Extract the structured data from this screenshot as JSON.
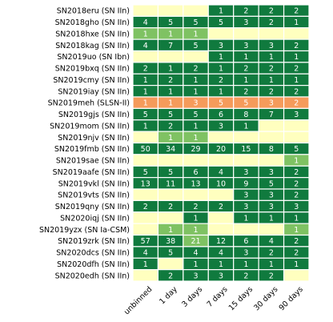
{
  "chart_data": {
    "type": "heatmap",
    "columns": [
      "unbinned",
      "1 day",
      "3 days",
      "7 days",
      "15 days",
      "30 days",
      "90 days"
    ],
    "rows": [
      {
        "label": "SN2018eru (SN IIn)",
        "values": [
          null,
          null,
          null,
          1,
          2,
          2,
          2
        ],
        "categories": [
          "none",
          "none",
          "none",
          "dark",
          "dark",
          "dark",
          "dark"
        ]
      },
      {
        "label": "SN2018gho (SN IIn)",
        "values": [
          4,
          5,
          5,
          5,
          3,
          2,
          1
        ],
        "categories": [
          "dark",
          "dark",
          "dark",
          "dark",
          "dark",
          "dark",
          "dark"
        ]
      },
      {
        "label": "SN2018hxe (SN IIn)",
        "values": [
          1,
          1,
          1,
          null,
          null,
          null,
          null
        ],
        "categories": [
          "light",
          "light",
          "light",
          "none",
          "none",
          "none",
          "none"
        ]
      },
      {
        "label": "SN2018kag (SN IIn)",
        "values": [
          4,
          7,
          5,
          3,
          3,
          3,
          2
        ],
        "categories": [
          "dark",
          "dark",
          "dark",
          "dark",
          "dark",
          "dark",
          "dark"
        ]
      },
      {
        "label": "SN2019uo (SN Ibn)",
        "values": [
          null,
          null,
          null,
          1,
          1,
          1,
          1
        ],
        "categories": [
          "none",
          "none",
          "none",
          "dark",
          "dark",
          "dark",
          "dark"
        ]
      },
      {
        "label": "SN2019bxq (SN IIn)",
        "values": [
          2,
          1,
          2,
          1,
          2,
          2,
          2
        ],
        "categories": [
          "dark",
          "dark",
          "dark",
          "dark",
          "dark",
          "dark",
          "dark"
        ]
      },
      {
        "label": "SN2019cmy (SN IIn)",
        "values": [
          1,
          2,
          1,
          2,
          1,
          1,
          1
        ],
        "categories": [
          "dark",
          "dark",
          "dark",
          "dark",
          "dark",
          "dark",
          "dark"
        ]
      },
      {
        "label": "SN2019iay (SN IIn)",
        "values": [
          1,
          1,
          1,
          1,
          2,
          2,
          2
        ],
        "categories": [
          "dark",
          "dark",
          "dark",
          "dark",
          "dark",
          "dark",
          "dark"
        ]
      },
      {
        "label": "SN2019meh (SLSN-II)",
        "values": [
          1,
          1,
          3,
          5,
          5,
          3,
          2
        ],
        "categories": [
          "orange",
          "orange",
          "orange",
          "orange",
          "orange",
          "orange",
          "orange"
        ]
      },
      {
        "label": "SN2019gjs (SN IIn)",
        "values": [
          5,
          5,
          5,
          6,
          8,
          7,
          3
        ],
        "categories": [
          "dark",
          "dark",
          "dark",
          "dark",
          "dark",
          "dark",
          "dark"
        ]
      },
      {
        "label": "SN2019mom (SN IIn)",
        "values": [
          1,
          2,
          1,
          3,
          1,
          null,
          null
        ],
        "categories": [
          "dark",
          "dark",
          "dark",
          "dark",
          "dark",
          "none",
          "none"
        ]
      },
      {
        "label": "SN2019njv (SN IIn)",
        "values": [
          null,
          1,
          1,
          null,
          null,
          null,
          null
        ],
        "categories": [
          "none",
          "light",
          "light",
          "none",
          "none",
          "none",
          "none"
        ]
      },
      {
        "label": "SN2019fmb (SN IIn)",
        "values": [
          50,
          34,
          29,
          20,
          15,
          8,
          5
        ],
        "categories": [
          "dark",
          "dark",
          "dark",
          "dark",
          "dark",
          "dark",
          "dark"
        ]
      },
      {
        "label": "SN2019sae (SN IIn)",
        "values": [
          null,
          null,
          null,
          null,
          null,
          null,
          1
        ],
        "categories": [
          "none",
          "none",
          "none",
          "none",
          "none",
          "none",
          "light"
        ]
      },
      {
        "label": "SN2019aafe (SN IIn)",
        "values": [
          5,
          5,
          6,
          4,
          3,
          3,
          2
        ],
        "categories": [
          "dark",
          "dark",
          "dark",
          "dark",
          "dark",
          "dark",
          "dark"
        ]
      },
      {
        "label": "SN2019vkl (SN IIn)",
        "values": [
          13,
          11,
          13,
          10,
          9,
          5,
          2
        ],
        "categories": [
          "dark",
          "dark",
          "dark",
          "dark",
          "dark",
          "dark",
          "dark"
        ]
      },
      {
        "label": "SN2019vts (SN IIn)",
        "values": [
          null,
          null,
          null,
          null,
          3,
          3,
          2
        ],
        "categories": [
          "none",
          "none",
          "none",
          "none",
          "dark",
          "dark",
          "dark"
        ]
      },
      {
        "label": "SN2019qny (SN IIn)",
        "values": [
          2,
          2,
          2,
          2,
          3,
          3,
          3
        ],
        "categories": [
          "dark",
          "dark",
          "dark",
          "dark",
          "dark",
          "dark",
          "dark"
        ]
      },
      {
        "label": "SN2020iqj (SN IIn)",
        "values": [
          null,
          null,
          1,
          null,
          1,
          1,
          1
        ],
        "categories": [
          "none",
          "none",
          "dark",
          "none",
          "dark",
          "dark",
          "dark"
        ]
      },
      {
        "label": "SN2019yzx (SN Ia-CSM)",
        "values": [
          null,
          1,
          1,
          null,
          null,
          null,
          1
        ],
        "categories": [
          "none",
          "light",
          "light",
          "none",
          "none",
          "none",
          "light"
        ]
      },
      {
        "label": "SN2019zrk (SN IIn)",
        "values": [
          57,
          38,
          21,
          12,
          6,
          4,
          2
        ],
        "categories": [
          "dark",
          "dark",
          "light",
          "dark",
          "dark",
          "dark",
          "dark"
        ]
      },
      {
        "label": "SN2020dcs (SN IIn)",
        "values": [
          4,
          5,
          4,
          4,
          3,
          2,
          2
        ],
        "categories": [
          "dark",
          "dark",
          "dark",
          "dark",
          "dark",
          "dark",
          "dark"
        ]
      },
      {
        "label": "SN2020dfh (SN IIn)",
        "values": [
          1,
          null,
          1,
          1,
          1,
          1,
          1
        ],
        "categories": [
          "dark",
          "none",
          "dark",
          "dark",
          "dark",
          "dark",
          "dark"
        ]
      },
      {
        "label": "SN2020edh (SN IIn)",
        "values": [
          null,
          2,
          3,
          3,
          2,
          2,
          null
        ],
        "categories": [
          "none",
          "dark",
          "dark",
          "dark",
          "dark",
          "dark",
          "none"
        ]
      }
    ],
    "colors": {
      "dark": "#107a3e",
      "light": "#7fc263",
      "orange": "#f59b5b",
      "none": "#ffffbf",
      "grid": "#ffffff",
      "text": "#ffffff"
    },
    "title": "",
    "xlabel": "",
    "ylabel": ""
  }
}
